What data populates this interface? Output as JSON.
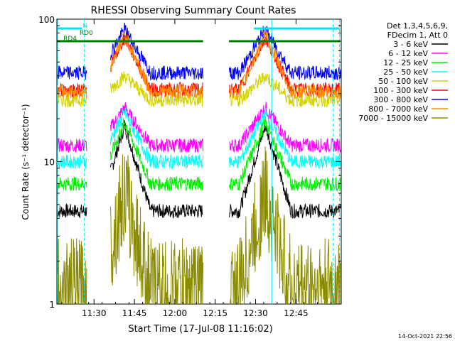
{
  "chart_data": {
    "type": "line",
    "title": "RHESSI Observing Summary Count Rates",
    "xlabel": "Start Time (17-Jul-08 11:16:02)",
    "ylabel": "Count Rate (s⁻¹ detector⁻¹)",
    "y_scale": "log",
    "ylim": [
      1,
      100
    ],
    "xlim_minutes": [
      11.27,
      13.03
    ],
    "x_ticks": [
      {
        "t": 11.5,
        "label": "11:30"
      },
      {
        "t": 11.75,
        "label": "11:45"
      },
      {
        "t": 12.0,
        "label": "12:00"
      },
      {
        "t": 12.25,
        "label": "12:15"
      },
      {
        "t": 12.5,
        "label": "12:30"
      },
      {
        "t": 12.75,
        "label": "12:45"
      }
    ],
    "y_ticks": [
      {
        "v": 100,
        "label": "100"
      },
      {
        "v": 10,
        "label": "10"
      },
      {
        "v": 1,
        "label": "1"
      }
    ],
    "legend_header": [
      "Det 1,3,4,5,6,9,",
      "FDecim 1, Att 0"
    ],
    "legend_placement": "right",
    "footer_date": "14-Oct-2021 22:56",
    "night_gaps_hours": [
      [
        11.455,
        11.6
      ],
      [
        12.175,
        12.335
      ]
    ],
    "orbit_peaks_hours": [
      11.69,
      12.56
    ],
    "series": [
      {
        "name": "3 - 6 keV",
        "color": "#000000",
        "base": 4.5,
        "peak": 18
      },
      {
        "name": "6 - 12 keV",
        "color": "#ff00ff",
        "base": 13,
        "peak": 24
      },
      {
        "name": "12 - 25 keV",
        "color": "#00ee00",
        "base": 7,
        "peak": 19
      },
      {
        "name": "25 - 50 keV",
        "color": "#00ffff",
        "base": 10,
        "peak": 22
      },
      {
        "name": "50 - 100 keV",
        "color": "#d2d200",
        "base": 27,
        "peak": 40
      },
      {
        "name": "100 - 300 keV",
        "color": "#ff0000",
        "base": 32,
        "peak": 75
      },
      {
        "name": "300 - 800 keV",
        "color": "#0000ff",
        "base": 42,
        "peak": 85
      },
      {
        "name": "800 - 7000 keV",
        "color": "#ff8c00",
        "base": 31,
        "peak": 78
      },
      {
        "name": "7000 - 15000 keV",
        "color": "#8b8b00",
        "base": 1.3,
        "peak": 6
      }
    ],
    "flag_labels": {
      "saa": "N",
      "rd0": "RD0",
      "rd4": "RD4"
    }
  }
}
